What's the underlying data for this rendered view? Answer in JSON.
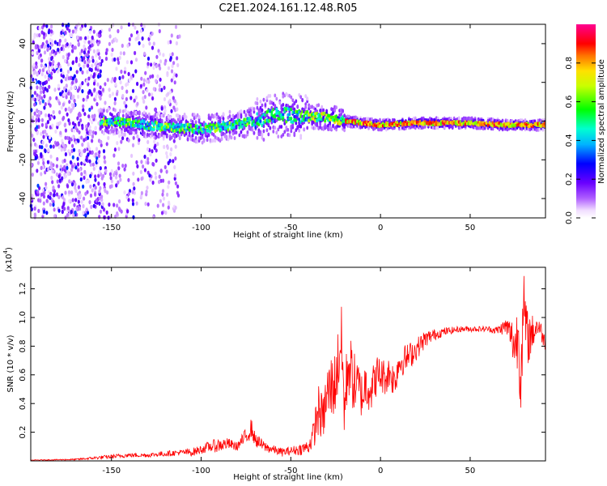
{
  "title": "C2E1.2024.161.12.48.R05",
  "colors": {
    "snr_line": "#ff0000",
    "axis": "#000000",
    "background": "#ffffff"
  },
  "chart_data": [
    {
      "type": "heatmap",
      "name": "spectrogram",
      "xlabel": "Height of straight line (km)",
      "ylabel": "Frequency (Hz)",
      "xlim": [
        -195,
        92
      ],
      "ylim": [
        -50,
        50
      ],
      "xticks": [
        -150,
        -100,
        -50,
        0,
        50
      ],
      "xtick_labels": [
        "-150",
        "-100",
        "-50",
        "0",
        "50"
      ],
      "yticks": [
        -40,
        -20,
        0,
        20,
        40
      ],
      "ytick_labels": [
        "-40",
        "-20",
        "0",
        "20",
        "40"
      ],
      "colorbar": {
        "label": "Normalized spectral amplitude",
        "range": [
          0,
          1
        ],
        "ticks": [
          0.0,
          0.2,
          0.4,
          0.6,
          0.8
        ],
        "tick_labels": [
          "0.0",
          "0.2",
          "0.4",
          "0.6",
          "0.8"
        ],
        "colormap": "rainbow (white-violet-blue-cyan-green-yellow-red-magenta)"
      },
      "regions": [
        {
          "x_range": [
            -195,
            -155
          ],
          "description": "broadband noise across all frequencies",
          "amplitude": 0.25
        },
        {
          "x_range": [
            -155,
            -112
          ],
          "description": "sparse noise across all frequencies plus carrier near 0 Hz",
          "amplitude": 0.15
        },
        {
          "x_range": [
            -112,
            -20
          ],
          "description": "carrier band near 0 Hz with spread",
          "center_hz": 0,
          "amplitude": 0.5
        },
        {
          "x_range": [
            -20,
            92
          ],
          "description": "narrow strong carrier near 0 Hz",
          "center_hz": -1,
          "amplitude": 0.85
        }
      ],
      "carrier_path": [
        {
          "x": -150,
          "f": 0
        },
        {
          "x": -120,
          "f": -3
        },
        {
          "x": -100,
          "f": -4
        },
        {
          "x": -80,
          "f": -2
        },
        {
          "x": -70,
          "f": 0
        },
        {
          "x": -60,
          "f": 3
        },
        {
          "x": -50,
          "f": 3
        },
        {
          "x": -40,
          "f": 2
        },
        {
          "x": -30,
          "f": 2
        },
        {
          "x": -20,
          "f": 0
        },
        {
          "x": 0,
          "f": -2
        },
        {
          "x": 20,
          "f": -1
        },
        {
          "x": 50,
          "f": -1
        },
        {
          "x": 70,
          "f": -2
        },
        {
          "x": 90,
          "f": -2
        }
      ]
    },
    {
      "type": "line",
      "name": "snr",
      "xlabel": "Height of straight line (km)",
      "ylabel": "SNR (10 * v/v)",
      "y_multiplier": "(x10",
      "y_multiplier_exp": "4",
      "y_multiplier_close": ")",
      "xlim": [
        -195,
        92
      ],
      "ylim": [
        0,
        1.35
      ],
      "xticks": [
        -150,
        -100,
        -50,
        0,
        50
      ],
      "xtick_labels": [
        "-150",
        "-100",
        "-50",
        "0",
        "50"
      ],
      "yticks": [
        0.2,
        0.4,
        0.6,
        0.8,
        1.0,
        1.2
      ],
      "ytick_labels": [
        "0.2",
        "0.4",
        "0.6",
        "0.8",
        "1.0",
        "1.2"
      ],
      "series": [
        {
          "x": [
            -195,
            -170,
            -160,
            -150,
            -140,
            -130,
            -120,
            -110,
            -105,
            -100,
            -95,
            -90,
            -85,
            -80,
            -75,
            -72,
            -70,
            -65,
            -60,
            -55,
            -50,
            -45,
            -40,
            -37,
            -35,
            -32,
            -30,
            -28,
            -25,
            -22,
            -20,
            -18,
            -15,
            -12,
            -10,
            -8,
            -5,
            -2,
            0,
            3,
            5,
            8,
            10,
            15,
            20,
            25,
            30,
            35,
            40,
            45,
            50,
            55,
            60,
            65,
            70,
            72,
            75,
            77,
            78,
            80,
            82,
            85,
            88,
            92
          ],
          "y": [
            0.005,
            0.01,
            0.02,
            0.03,
            0.04,
            0.04,
            0.05,
            0.06,
            0.06,
            0.08,
            0.1,
            0.11,
            0.12,
            0.1,
            0.17,
            0.23,
            0.15,
            0.1,
            0.08,
            0.06,
            0.07,
            0.08,
            0.1,
            0.2,
            0.35,
            0.3,
            0.45,
            0.5,
            0.55,
            0.85,
            0.35,
            0.7,
            0.55,
            0.5,
            0.45,
            0.55,
            0.5,
            0.6,
            0.6,
            0.58,
            0.62,
            0.55,
            0.68,
            0.72,
            0.78,
            0.85,
            0.88,
            0.9,
            0.91,
            0.92,
            0.92,
            0.92,
            0.92,
            0.91,
            0.94,
            0.9,
            0.8,
            0.9,
            0.6,
            1.05,
            0.85,
            0.9,
            0.95,
            0.82
          ],
          "noise": [
            0.002,
            0.005,
            0.01,
            0.015,
            0.015,
            0.015,
            0.02,
            0.02,
            0.03,
            0.03,
            0.04,
            0.05,
            0.04,
            0.03,
            0.06,
            0.07,
            0.05,
            0.04,
            0.03,
            0.03,
            0.03,
            0.04,
            0.05,
            0.1,
            0.2,
            0.15,
            0.22,
            0.25,
            0.22,
            0.3,
            0.25,
            0.25,
            0.22,
            0.2,
            0.15,
            0.2,
            0.15,
            0.14,
            0.14,
            0.12,
            0.12,
            0.12,
            0.11,
            0.1,
            0.08,
            0.06,
            0.04,
            0.03,
            0.025,
            0.02,
            0.02,
            0.02,
            0.02,
            0.03,
            0.06,
            0.1,
            0.2,
            0.25,
            0.3,
            0.25,
            0.2,
            0.12,
            0.08,
            0.05
          ]
        }
      ]
    }
  ]
}
